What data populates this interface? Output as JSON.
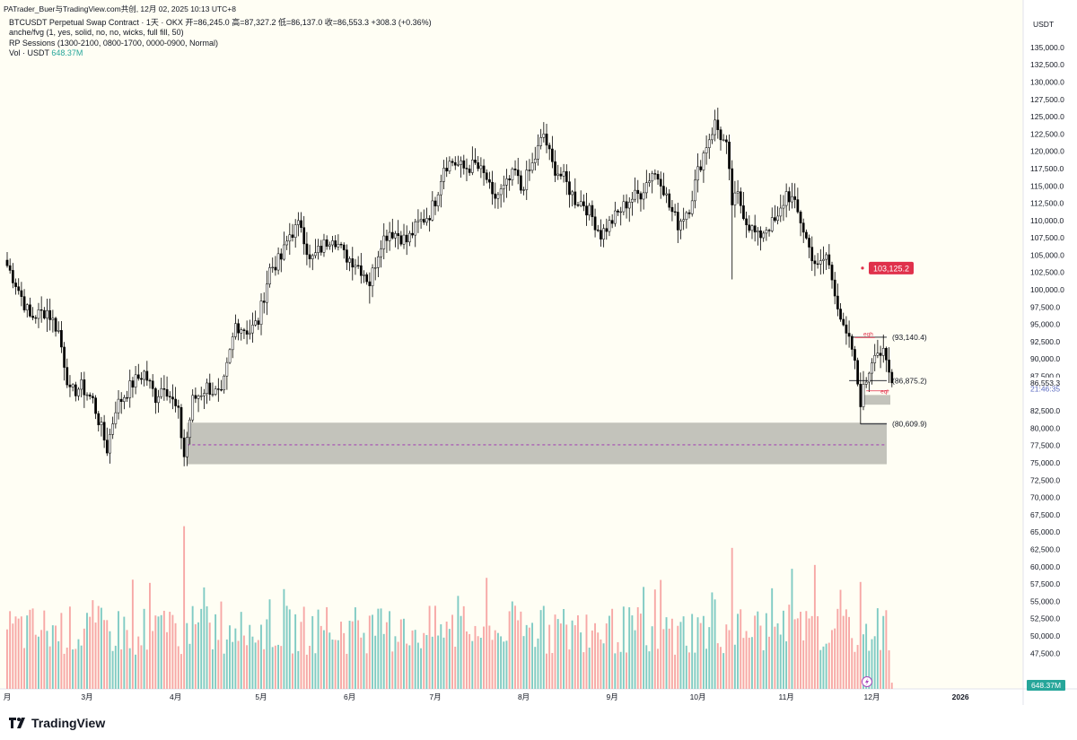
{
  "header": {
    "attribution": "PATrader_Buer与TradingView.com共创,  12月 02, 2025 10:13 UTC+8"
  },
  "legend": {
    "line1": "BTCUSDT Perpetual Swap Contract · 1天 · OKX  开=86,245.0  高=87,327.2  低=86,137.0  收=86,553.3  +308.3 (+0.36%)",
    "line2": "anche/fvg (1, yes, solid, no, no, wicks, full fill, 50)",
    "line3": "RP Sessions (1300-2100, 0800-1700, 0000-0900, Normal)",
    "line4_label": "Vol · USDT",
    "line4_value": "648.37M"
  },
  "axis": {
    "currency": "USDT"
  },
  "footer": {
    "brand": "TradingView"
  },
  "colors": {
    "bg": "#fffef4",
    "up": "#26a69a",
    "down": "#ef5350",
    "candle": "#000000",
    "zone": "#b8b8b0",
    "red_label": "#e0314b",
    "vol_up": "#80cbc4",
    "vol_down": "#f7a8a6"
  },
  "chart_data": {
    "type": "candlestick",
    "title": "BTCUSDT Perpetual Swap Contract · 1天 · OKX",
    "ylim": [
      43000,
      139000
    ],
    "y_ticks": [
      47500,
      50000,
      52500,
      55000,
      57500,
      60000,
      62500,
      65000,
      67500,
      70000,
      72500,
      75000,
      77500,
      80000,
      82500,
      85000,
      87500,
      90000,
      92500,
      95000,
      97500,
      100000,
      102500,
      105000,
      107500,
      110000,
      112500,
      115000,
      117500,
      120000,
      122500,
      125000,
      127500,
      130000,
      132500,
      135000
    ],
    "y_tick_labels": [
      "47,500.0",
      "50,000.0",
      "52,500.0",
      "55,000.0",
      "57,500.0",
      "60,000.0",
      "62,500.0",
      "65,000.0",
      "67,500.0",
      "70,000.0",
      "72,500.0",
      "75,000.0",
      "77,500.0",
      "80,000.0",
      "82,500.0",
      "85,000.0",
      "87,500.0",
      "90,000.0",
      "92,500.0",
      "95,000.0",
      "97,500.0",
      "100,000.0",
      "102,500.0",
      "105,000.0",
      "107,500.0",
      "110,000.0",
      "112,500.0",
      "115,000.0",
      "117,500.0",
      "120,000.0",
      "122,500.0",
      "125,000.0",
      "127,500.0",
      "130,000.0",
      "132,500.0",
      "135,000.0"
    ],
    "x_labels": [
      "月",
      "3月",
      "4月",
      "5月",
      "6月",
      "7月",
      "8月",
      "9月",
      "10月",
      "11月",
      "12月",
      "2026"
    ],
    "x_label_days": [
      0,
      28,
      59,
      89,
      120,
      150,
      181,
      212,
      242,
      273,
      303,
      334
    ],
    "start_day": 0,
    "keypoints": [
      [
        0,
        103500
      ],
      [
        3,
        101000
      ],
      [
        8,
        96000
      ],
      [
        14,
        97000
      ],
      [
        18,
        94000
      ],
      [
        22,
        85000
      ],
      [
        26,
        86000
      ],
      [
        30,
        84000
      ],
      [
        35,
        77000
      ],
      [
        38,
        83000
      ],
      [
        44,
        86500
      ],
      [
        48,
        88000
      ],
      [
        52,
        84500
      ],
      [
        55,
        86500
      ],
      [
        60,
        82000
      ],
      [
        62,
        76000
      ],
      [
        65,
        84000
      ],
      [
        70,
        86000
      ],
      [
        75,
        84500
      ],
      [
        80,
        95000
      ],
      [
        85,
        94000
      ],
      [
        88,
        95500
      ],
      [
        92,
        103000
      ],
      [
        96,
        104500
      ],
      [
        99,
        108000
      ],
      [
        103,
        109500
      ],
      [
        106,
        104000
      ],
      [
        110,
        106000
      ],
      [
        114,
        108000
      ],
      [
        118,
        105000
      ],
      [
        122,
        104000
      ],
      [
        125,
        102500
      ],
      [
        127,
        101000
      ],
      [
        131,
        107000
      ],
      [
        134,
        108500
      ],
      [
        137,
        108000
      ],
      [
        140,
        107000
      ],
      [
        144,
        109500
      ],
      [
        148,
        111000
      ],
      [
        150,
        113000
      ],
      [
        153,
        118000
      ],
      [
        156,
        118500
      ],
      [
        160,
        117500
      ],
      [
        164,
        118000
      ],
      [
        168,
        116000
      ],
      [
        170,
        113000
      ],
      [
        174,
        114500
      ],
      [
        178,
        117000
      ],
      [
        180,
        114500
      ],
      [
        184,
        118000
      ],
      [
        188,
        122500
      ],
      [
        191,
        118000
      ],
      [
        195,
        116000
      ],
      [
        199,
        113000
      ],
      [
        202,
        112500
      ],
      [
        205,
        110500
      ],
      [
        208,
        108000
      ],
      [
        211,
        109500
      ],
      [
        214,
        111000
      ],
      [
        218,
        113000
      ],
      [
        222,
        114000
      ],
      [
        226,
        117000
      ],
      [
        229,
        116000
      ],
      [
        232,
        112000
      ],
      [
        235,
        109500
      ],
      [
        239,
        112000
      ],
      [
        242,
        117000
      ],
      [
        245,
        121000
      ],
      [
        248,
        124000
      ],
      [
        252,
        120500
      ],
      [
        254,
        112500
      ],
      [
        256,
        113500
      ],
      [
        259,
        110000
      ],
      [
        263,
        107500
      ],
      [
        266,
        109000
      ],
      [
        270,
        110000
      ],
      [
        273,
        114000
      ],
      [
        275,
        113000
      ],
      [
        278,
        110000
      ],
      [
        281,
        106000
      ],
      [
        284,
        103000
      ],
      [
        287,
        105000
      ],
      [
        290,
        100000
      ],
      [
        293,
        94000
      ],
      [
        296,
        91500
      ],
      [
        299,
        84000
      ],
      [
        301,
        87000
      ],
      [
        304,
        91500
      ],
      [
        307,
        90500
      ],
      [
        310,
        86500
      ]
    ],
    "x_span_days": 370,
    "vol_ylim": [
      0,
      11
    ],
    "vol_last": "648.37M",
    "levels": [
      {
        "label": "(93,140.4)",
        "value": 93140.4
      },
      {
        "label": "(86,875.2)",
        "value": 86875.2
      },
      {
        "label": "(80,609.9)",
        "value": 80609.9
      }
    ],
    "fvg_zone": {
      "low": 74800,
      "high": 80800,
      "mid": 77600
    },
    "target_label": "103,125.2",
    "target_value": 103125.2,
    "last_price_label": "86,553.3",
    "countdown_label": "21:46:35",
    "small_labels": {
      "eqh": "eqh",
      "eql": "eql"
    },
    "last_price_value": 86553.3,
    "countdown_value": 85700
  }
}
